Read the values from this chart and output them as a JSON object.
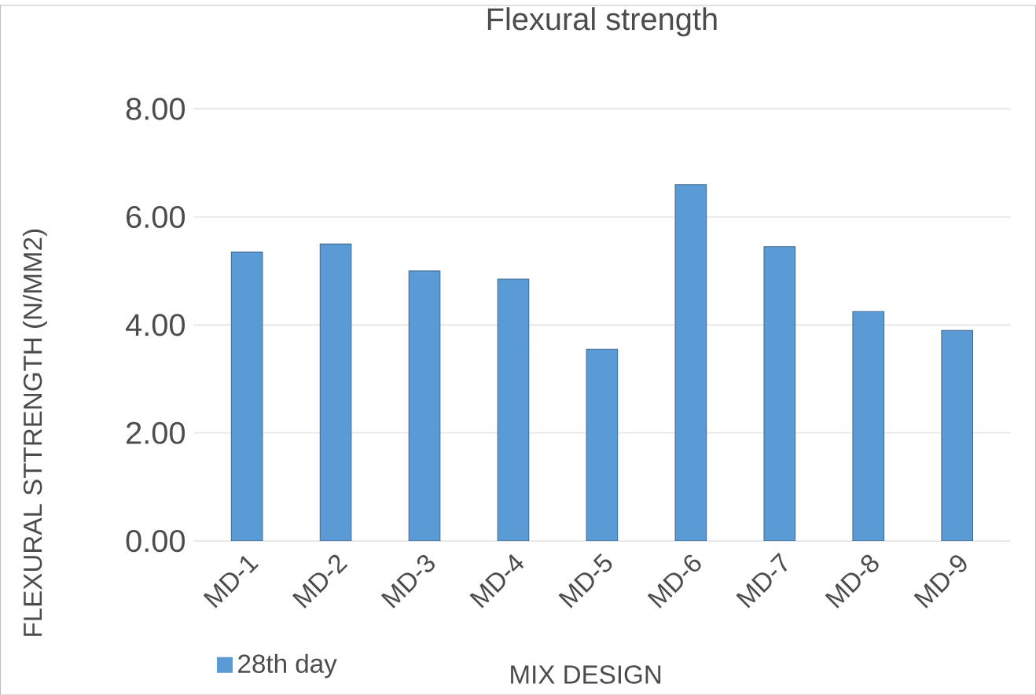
{
  "chart_data": {
    "type": "bar",
    "title": "Flexural strength",
    "xlabel": "MIX DESIGN",
    "ylabel": "FLEXURAL STTRENGTH (N/MM2)",
    "categories": [
      "MD-1",
      "MD-2",
      "MD-3",
      "MD-4",
      "MD-5",
      "MD-6",
      "MD-7",
      "MD-8",
      "MD-9"
    ],
    "series": [
      {
        "name": "28th day",
        "color": "#5b9bd5",
        "values": [
          5.35,
          5.5,
          5.0,
          4.85,
          3.55,
          6.6,
          5.45,
          4.25,
          3.9
        ]
      }
    ],
    "ylim": [
      0,
      8
    ],
    "yticks": [
      {
        "value": 0,
        "label": "0.00"
      },
      {
        "value": 2,
        "label": "2.00"
      },
      {
        "value": 4,
        "label": "4.00"
      },
      {
        "value": 6,
        "label": "6.00"
      },
      {
        "value": 8,
        "label": "8.00"
      }
    ],
    "grid": "y",
    "legend": "bottom left"
  }
}
